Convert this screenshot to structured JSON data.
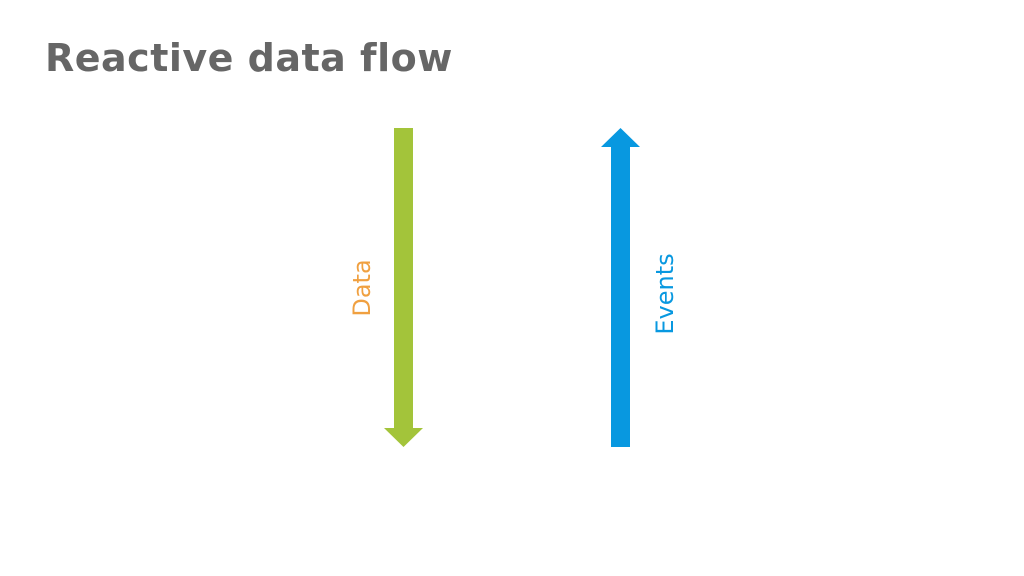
{
  "title": "Reactive data flow",
  "arrows": [
    {
      "label": "Data",
      "direction": "down",
      "arrow_color": "#a3c43a",
      "label_color": "#f0a040"
    },
    {
      "label": "Events",
      "direction": "up",
      "arrow_color": "#0898e0",
      "label_color": "#0898e0"
    }
  ]
}
